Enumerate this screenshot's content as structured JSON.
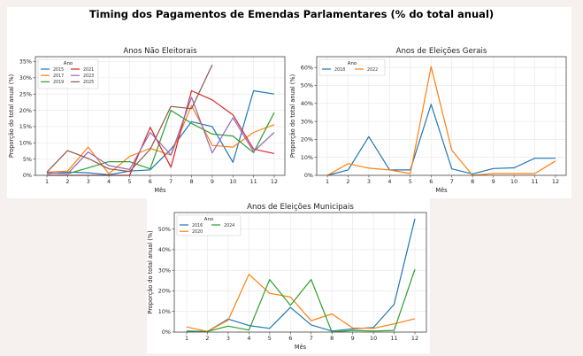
{
  "suptitle": "Timing dos Pagamentos de Emendas Parlamentares (% do total anual)",
  "colors": {
    "2015": "#1f77b4",
    "2017": "#ff7f0e",
    "2019": "#2ca02c",
    "2021": "#d62728",
    "2023": "#9467bd",
    "2025": "#8c564b",
    "2018": "#1f77b4",
    "2022": "#ff7f0e",
    "2016": "#1f77b4",
    "2020": "#ff7f0e",
    "2024": "#2ca02c"
  },
  "chart_data": [
    {
      "id": "nao-eleitorais",
      "type": "line",
      "title": "Anos Não Eleitorais",
      "xlabel": "Mês",
      "ylabel": "Proporção do total anual (%)",
      "x": [
        1,
        2,
        3,
        4,
        5,
        6,
        7,
        8,
        9,
        10,
        11,
        12
      ],
      "xticks": [
        "1",
        "2",
        "3",
        "4",
        "5",
        "6",
        "7",
        "8",
        "9",
        "10",
        "11",
        "12"
      ],
      "yticks": [
        0,
        5,
        10,
        15,
        20,
        25,
        30,
        35
      ],
      "ytick_labels": [
        "0%",
        "5%",
        "10%",
        "15%",
        "20%",
        "25%",
        "30%",
        "35%"
      ],
      "ylim": [
        0,
        36.5
      ],
      "grid": true,
      "legend": {
        "title": "Ano",
        "placement": "top-left",
        "columns": 2
      },
      "series": [
        {
          "name": "2015",
          "values": [
            0.5,
            1.0,
            0.8,
            0.2,
            1.3,
            1.7,
            8.0,
            16.5,
            15.0,
            4.0,
            26.0,
            25.0
          ]
        },
        {
          "name": "2017",
          "values": [
            1.0,
            1.3,
            8.7,
            0.5,
            5.8,
            8.3,
            6.2,
            21.5,
            9.2,
            8.7,
            13.2,
            15.6
          ]
        },
        {
          "name": "2019",
          "values": [
            0.8,
            0.5,
            2.3,
            4.2,
            4.2,
            2.0,
            20.0,
            16.0,
            12.7,
            12.1,
            7.0,
            19.3
          ]
        },
        {
          "name": "2021",
          "values": [
            0.0,
            0.0,
            0.0,
            0.0,
            0.0,
            14.8,
            2.5,
            26.0,
            23.2,
            18.6,
            8.1,
            6.7
          ]
        },
        {
          "name": "2023",
          "values": [
            0.8,
            0.5,
            7.2,
            3.0,
            1.8,
            13.2,
            6.3,
            24.0,
            6.9,
            17.7,
            7.3,
            13.2
          ]
        },
        {
          "name": "2025",
          "values": [
            1.0,
            7.6,
            5.2,
            2.0,
            1.2,
            8.0,
            21.2,
            20.5,
            34.0,
            null,
            null,
            null
          ]
        }
      ]
    },
    {
      "id": "eleicoes-gerais",
      "type": "line",
      "title": "Anos de Eleições Gerais",
      "xlabel": "Mês",
      "ylabel": "Proporção do total anual (%)",
      "x": [
        1,
        2,
        3,
        4,
        5,
        6,
        7,
        8,
        9,
        10,
        11,
        12
      ],
      "xticks": [
        "1",
        "2",
        "3",
        "4",
        "5",
        "6",
        "7",
        "8",
        "9",
        "10",
        "11",
        "12"
      ],
      "yticks": [
        0,
        10,
        20,
        30,
        40,
        50,
        60
      ],
      "ytick_labels": [
        "0%",
        "10%",
        "20%",
        "30%",
        "40%",
        "50%",
        "60%"
      ],
      "ylim": [
        0,
        66
      ],
      "grid": true,
      "legend": {
        "title": "Ano",
        "placement": "top-left",
        "columns": 2
      },
      "series": [
        {
          "name": "2018",
          "values": [
            0.0,
            3.0,
            21.5,
            3.0,
            3.0,
            39.5,
            3.6,
            0.8,
            3.8,
            4.2,
            9.5,
            9.5
          ]
        },
        {
          "name": "2022",
          "values": [
            0.0,
            6.5,
            4.0,
            3.0,
            1.0,
            60.5,
            14.0,
            0.0,
            1.0,
            1.0,
            1.0,
            8.0
          ]
        }
      ]
    },
    {
      "id": "eleicoes-municipais",
      "type": "line",
      "title": "Anos de Eleições Municipais",
      "xlabel": "Mês",
      "ylabel": "Proporção do total anual (%)",
      "x": [
        1,
        2,
        3,
        4,
        5,
        6,
        7,
        8,
        9,
        10,
        11,
        12
      ],
      "xticks": [
        "1",
        "2",
        "3",
        "4",
        "5",
        "6",
        "7",
        "8",
        "9",
        "10",
        "11",
        "12"
      ],
      "yticks": [
        0,
        10,
        20,
        30,
        40,
        50
      ],
      "ytick_labels": [
        "0%",
        "10%",
        "20%",
        "30%",
        "40%",
        "50%"
      ],
      "ylim": [
        0,
        58
      ],
      "grid": true,
      "legend": {
        "title": "Ano",
        "placement": "top-left",
        "columns": 2
      },
      "series": [
        {
          "name": "2016",
          "values": [
            0.5,
            0.3,
            6.3,
            3.2,
            1.8,
            12.0,
            3.5,
            0.5,
            1.6,
            2.2,
            13.5,
            55.0
          ]
        },
        {
          "name": "2020",
          "values": [
            2.5,
            0.3,
            5.8,
            28.0,
            18.8,
            17.0,
            5.5,
            8.8,
            2.0,
            1.8,
            4.0,
            6.5
          ]
        },
        {
          "name": "2024",
          "values": [
            0.2,
            0.3,
            2.9,
            1.0,
            25.5,
            13.0,
            25.5,
            0.0,
            0.8,
            0.5,
            0.8,
            30.5
          ]
        }
      ]
    }
  ]
}
